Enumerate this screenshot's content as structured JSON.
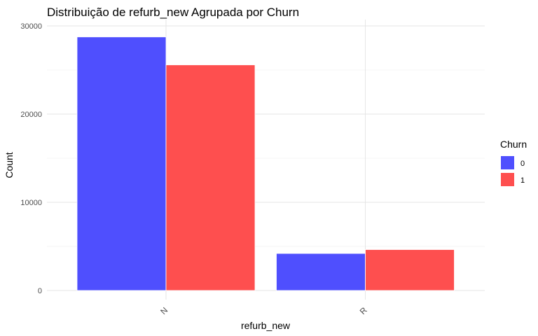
{
  "chart_data": {
    "type": "bar",
    "title": "Distribuição de refurb_new Agrupada por Churn",
    "xlabel": "refurb_new",
    "ylabel": "Count",
    "categories": [
      "N",
      "R"
    ],
    "series": [
      {
        "name": "0",
        "color": "#4f4ffe",
        "values": [
          28750,
          4200
        ]
      },
      {
        "name": "1",
        "color": "#fe4f4f",
        "values": [
          25580,
          4640
        ]
      }
    ],
    "ylim": [
      0,
      30000
    ],
    "yticks": [
      0,
      10000,
      20000,
      30000
    ],
    "grid": true,
    "legend": {
      "title": "Churn",
      "position": "right"
    }
  }
}
